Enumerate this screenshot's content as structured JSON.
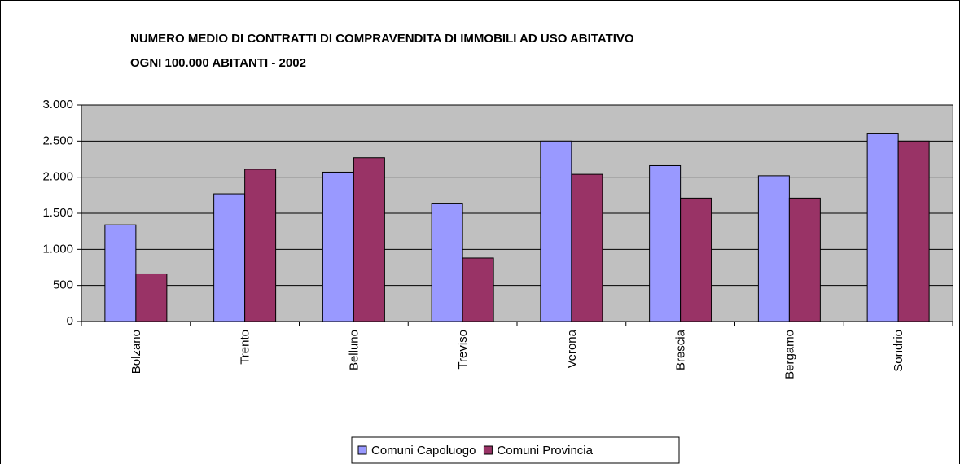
{
  "chart_data": {
    "type": "bar",
    "title": [
      "NUMERO MEDIO DI CONTRATTI DI COMPRAVENDITA DI IMMOBILI AD USO ABITATIVO",
      "OGNI 100.000 ABITANTI - 2002"
    ],
    "categories": [
      "Bolzano",
      "Trento",
      "Belluno",
      "Treviso",
      "Verona",
      "Brescia",
      "Bergamo",
      "Sondrio"
    ],
    "series": [
      {
        "name": "Comuni Capoluogo",
        "color": "#9999ff",
        "values": [
          1340,
          1770,
          2070,
          1640,
          2500,
          2160,
          2020,
          2610
        ]
      },
      {
        "name": "Comuni Provincia",
        "color": "#993366",
        "values": [
          660,
          2110,
          2270,
          880,
          2040,
          1710,
          1710,
          2500
        ]
      }
    ],
    "ylim": [
      0,
      3000
    ],
    "yticks": [
      0,
      {
        "value": 500,
        "label": "500"
      },
      {
        "value": 1000,
        "label": "1.000"
      },
      {
        "value": 1500,
        "label": "1.500"
      },
      {
        "value": 2000,
        "label": "2.000"
      },
      {
        "value": 2500,
        "label": "2.500"
      },
      {
        "value": 3000,
        "label": "3.000"
      }
    ],
    "grid": true,
    "plot_background": "#c0c0c0",
    "legend": "bottom"
  }
}
